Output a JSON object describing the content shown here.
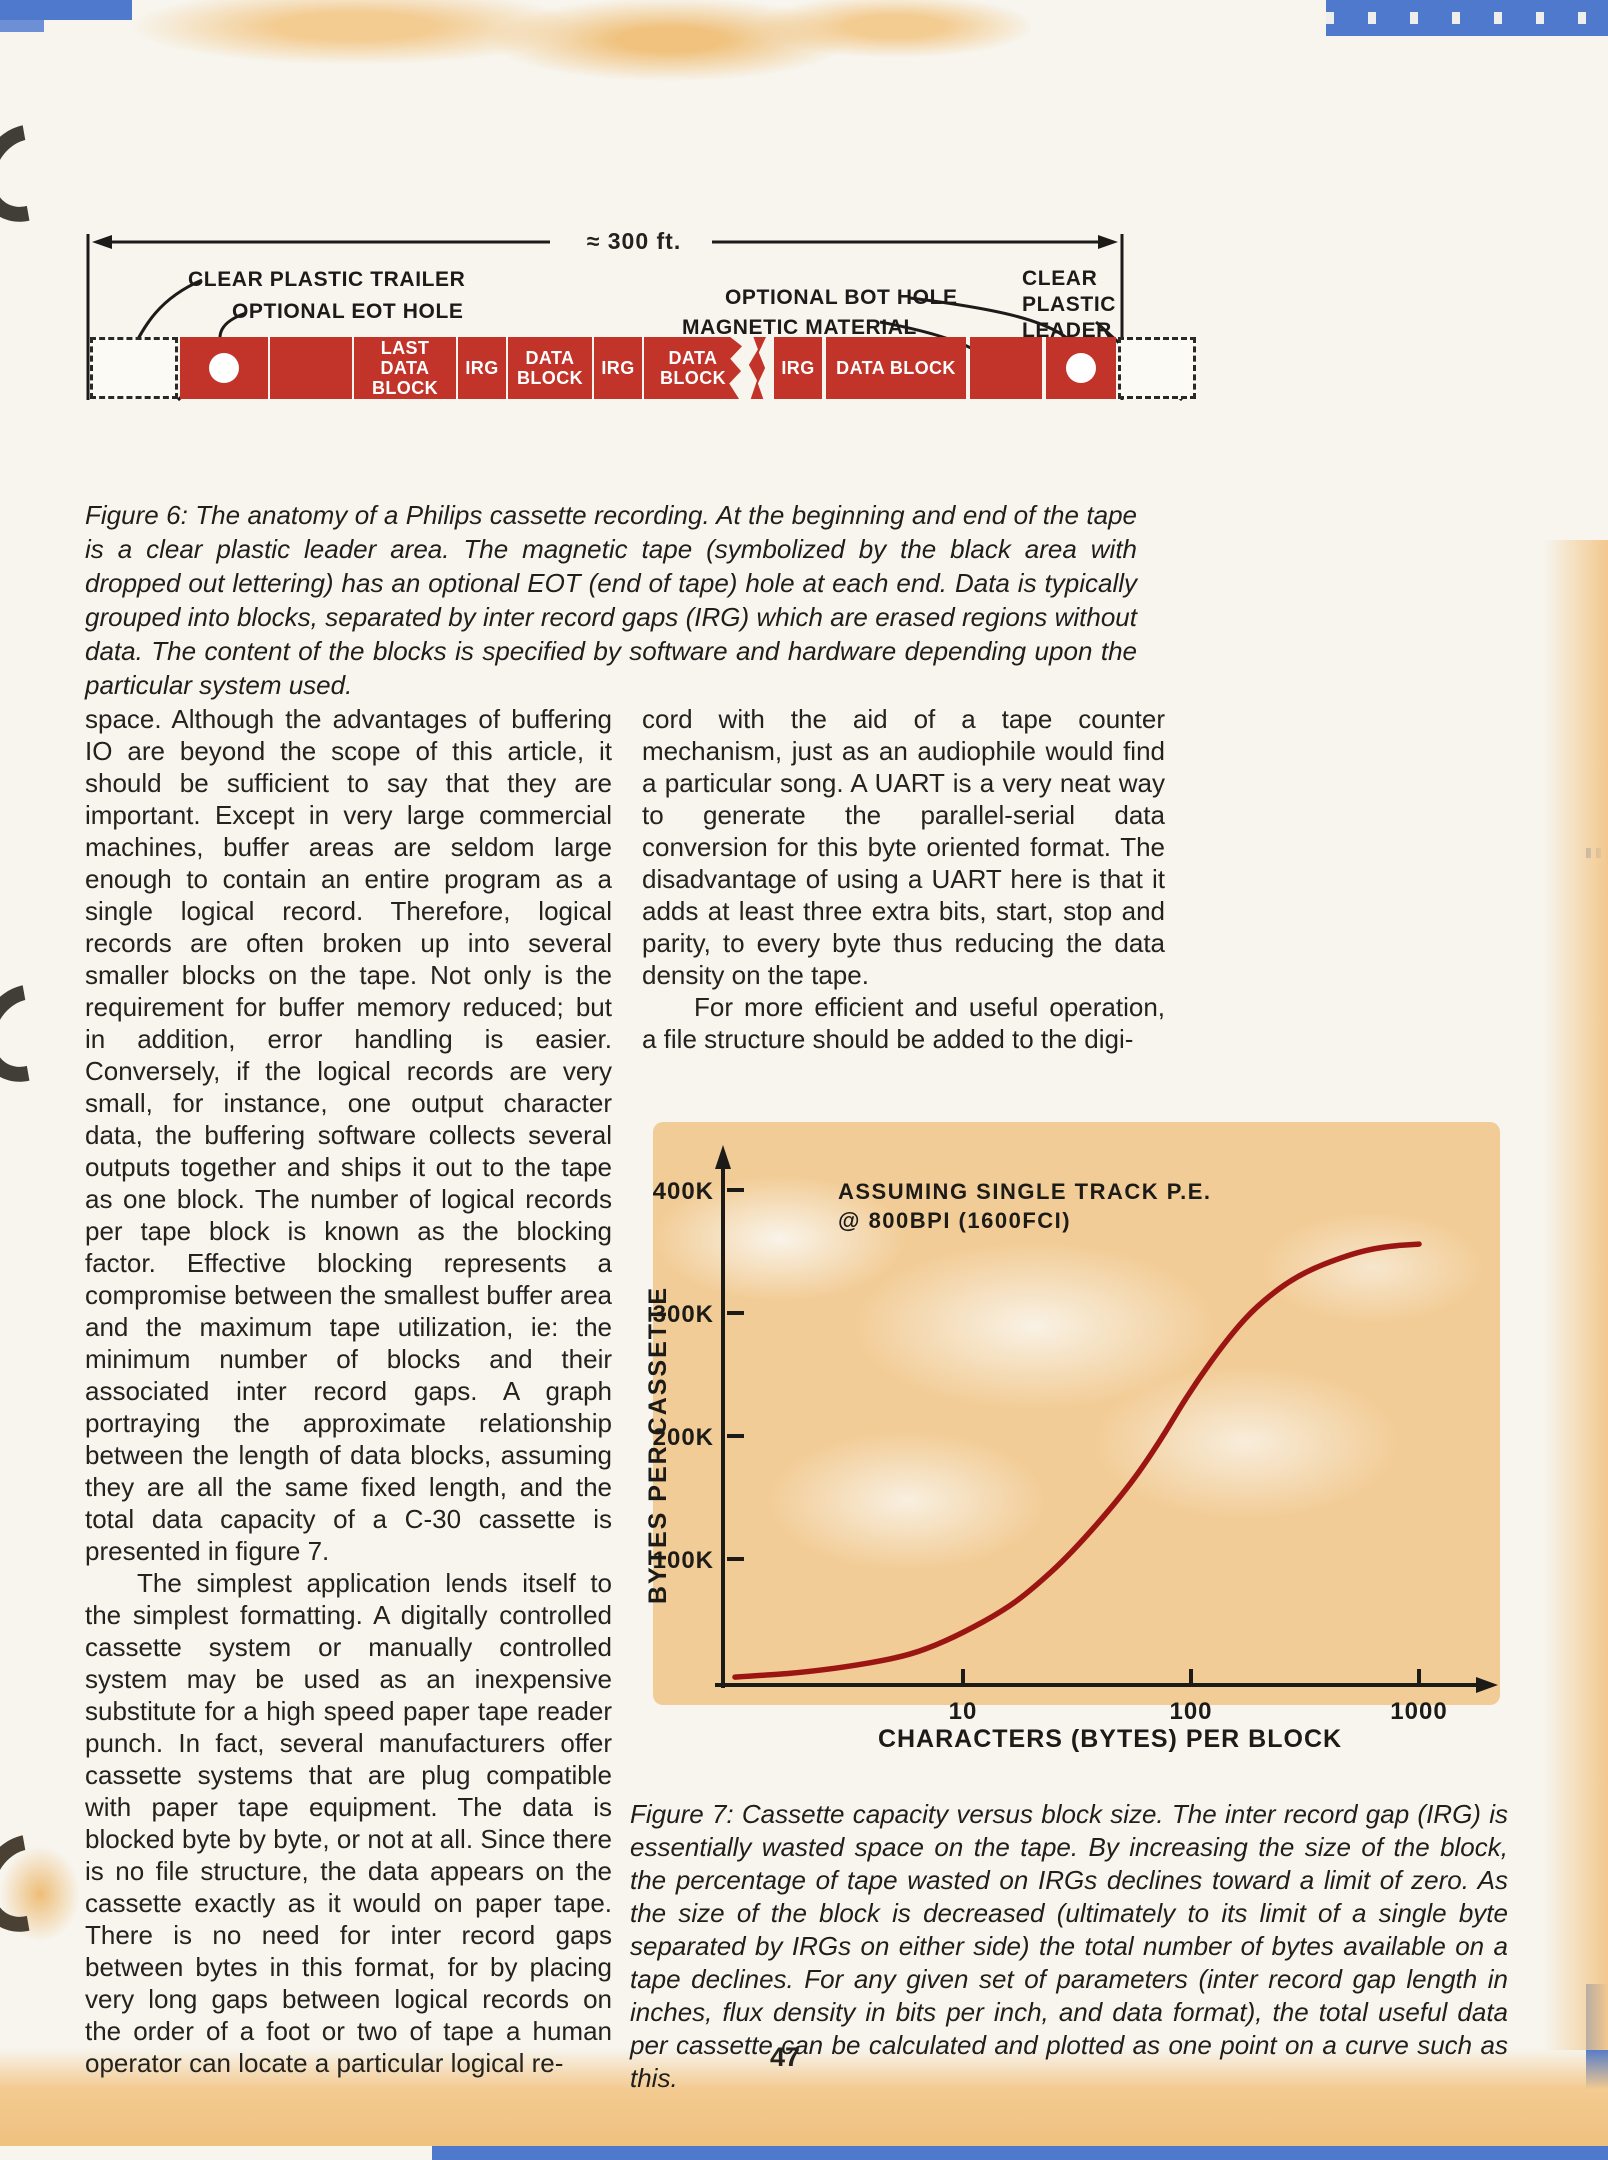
{
  "page": {
    "number": "47"
  },
  "colors": {
    "tape_red": "#c23329",
    "curve_red": "#9b1612",
    "accent_blue": "#4f79cc",
    "wash_tan": "#f2cc96",
    "ink": "#23221f"
  },
  "figure6": {
    "dimension_label": "≈ 300 ft.",
    "labels": {
      "trailer": "CLEAR PLASTIC TRAILER",
      "eot_hole": "OPTIONAL EOT HOLE",
      "bot_hole": "OPTIONAL BOT HOLE",
      "magnetic": "MAGNETIC MATERIAL",
      "leader": "CLEAR PLASTIC LEADER"
    },
    "tape_labels": [
      "LAST DATA BLOCK",
      "IRG",
      "DATA BLOCK",
      "IRG",
      "DATA BLOCK",
      "IRG",
      "DATA BLOCK"
    ],
    "caption": "Figure 6: The anatomy of a Philips cassette recording. At the beginning and end of the tape is a clear plastic leader area. The magnetic tape (symbolized by the black area with dropped out lettering) has an optional EOT (end of tape) hole at each end. Data is typically grouped into blocks, separated by inter record gaps (IRG) which are erased regions without data. The content of the blocks is specified by software and hardware depending upon the particular system used."
  },
  "article": {
    "left_col_p1": "space. Although the advantages of buffering IO are beyond the scope of this article, it should be sufficient to say that they are important. Except in very large commercial machines, buffer areas are seldom large enough to contain an entire program as a single logical record. Therefore, logical records are often broken up into several smaller blocks on the tape. Not only is the requirement for buffer memory reduced; but in addition, error handling is easier. Conversely, if the logical records are very small, for instance, one output character data, the buffering software collects several outputs together and ships it out to the tape as one block. The number of logical records per tape block is known as the blocking factor. Effective blocking represents a compromise between the smallest buffer area and the maximum tape utilization, ie: the minimum number of blocks and their associated inter record gaps. A graph portraying the approximate relationship between the length of data blocks, assuming they are all the same fixed length, and the total data capacity of a C-30 cassette is presented in figure 7.",
    "left_col_p2": "The simplest application lends itself to the simplest formatting. A digitally controlled cassette system or manually controlled system may be used as an inexpensive substitute for a high speed paper tape reader punch. In fact, several manufacturers offer cassette systems that are plug compatible with paper tape equipment. The data is blocked byte by byte, or not at all. Since there is no file structure, the data appears on the cassette exactly as it would on paper tape. There is no need for inter record gaps between bytes in this format, for by placing very long gaps between logical records on the order of a foot or two of tape a human operator can locate a particular logical re-",
    "right_col_p1": "cord with the aid of a tape counter mechanism, just as an audiophile would find a particular song. A UART is a very neat way to generate the parallel-serial data conversion for this byte oriented format. The disadvantage of using a UART here is that it adds at least three extra bits, start, stop and parity, to every byte thus reducing the data density on the tape.",
    "right_col_p2": "For more efficient and useful operation, a file structure should be added to the digi-"
  },
  "figure7": {
    "caption": "Figure 7: Cassette capacity versus block size. The inter record gap (IRG) is essentially wasted space on the tape. By increasing the size of the block, the percentage of tape wasted on IRGs declines toward a limit of zero. As the size of the block is decreased (ultimately to its limit of a single byte separated by IRGs on either side) the total number of bytes available on a tape declines. For any given set of parameters (inter record gap length in inches, flux density in bits per inch, and data format), the total useful data per cassette can be calculated and plotted as one point on a curve such as this."
  },
  "chart_data": {
    "type": "line",
    "title": "",
    "annotation": [
      "ASSUMING SINGLE TRACK P.E.",
      "@ 800BPI (1600FCI)"
    ],
    "xlabel": "CHARACTERS (BYTES) PER BLOCK",
    "ylabel": "BYTES PER CASSETTE",
    "x_scale": "log",
    "xlim": [
      1,
      1300
    ],
    "ylim": [
      0,
      430
    ],
    "grid": false,
    "legend_position": "top-left-inside",
    "x_ticks": [
      [
        "10",
        10
      ],
      [
        "100",
        100
      ],
      [
        "1000",
        1000
      ]
    ],
    "y_ticks": [
      [
        "400K",
        400
      ],
      [
        "300K",
        300
      ],
      [
        "200K",
        200
      ],
      [
        "100K",
        100
      ]
    ],
    "x": [
      1,
      1.5,
      2,
      3,
      5,
      7,
      10,
      15,
      20,
      30,
      50,
      70,
      100,
      150,
      200,
      300,
      500,
      700,
      1000
    ],
    "y_bytes_k": [
      4,
      6,
      8,
      12,
      19,
      27,
      40,
      58,
      75,
      105,
      152,
      190,
      238,
      283,
      308,
      332,
      348,
      354,
      356
    ],
    "curve_color": "#9b1612"
  }
}
